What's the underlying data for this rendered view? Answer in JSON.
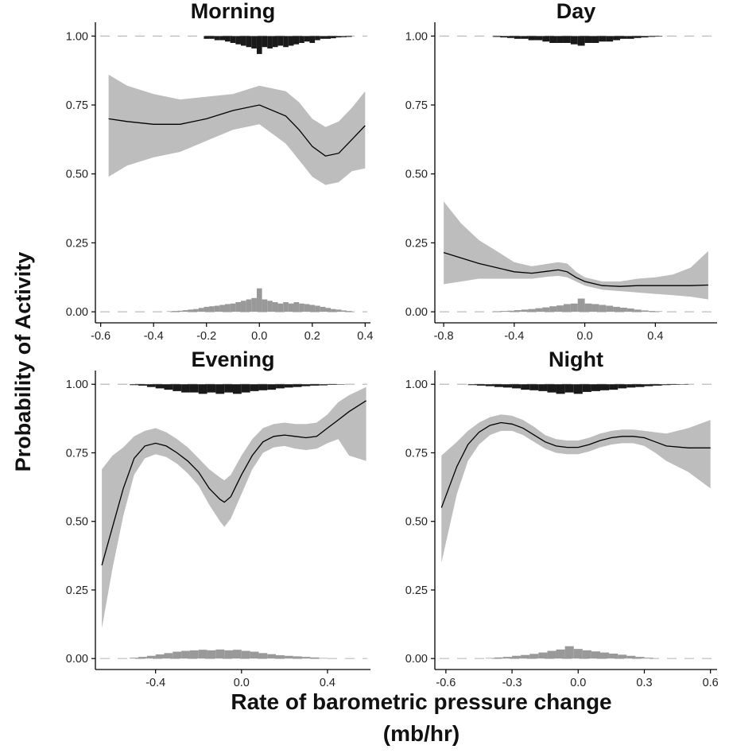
{
  "figure": {
    "ylabel": "Probability of Activity",
    "xlabel_line1": "Rate of barometric pressure change",
    "xlabel_line2": "(mb/hr)"
  },
  "style": {
    "band_color": "#bdbdbd",
    "line_color": "#000000",
    "top_hist_color": "#1a1a1a",
    "bottom_hist_color": "#999999",
    "dash_color": "#bbbbbb",
    "axis_color": "#000000"
  },
  "chart_data": [
    {
      "type": "line",
      "title": "Morning",
      "xlabel": "Rate of barometric pressure change (mb/hr)",
      "ylabel": "Probability of Activity",
      "xlim": [
        -0.62,
        0.42
      ],
      "ylim": [
        -0.04,
        1.05
      ],
      "xticks": [
        -0.6,
        -0.4,
        -0.2,
        0.0,
        0.2,
        0.4
      ],
      "xtick_labels": [
        "-0.6",
        "-0.4",
        "-0.2",
        "0.0",
        "0.2",
        "0.4"
      ],
      "yticks": [
        0.0,
        0.25,
        0.5,
        0.75,
        1.0
      ],
      "ytick_labels": [
        "0.00",
        "0.25",
        "0.50",
        "0.75",
        "1.00"
      ],
      "grid": false,
      "x": [
        -0.57,
        -0.5,
        -0.4,
        -0.3,
        -0.2,
        -0.1,
        0.0,
        0.1,
        0.15,
        0.2,
        0.25,
        0.3,
        0.35,
        0.4
      ],
      "y": [
        0.7,
        0.69,
        0.68,
        0.68,
        0.7,
        0.73,
        0.75,
        0.71,
        0.66,
        0.6,
        0.565,
        0.575,
        0.625,
        0.675
      ],
      "lower": [
        0.49,
        0.53,
        0.56,
        0.58,
        0.62,
        0.66,
        0.68,
        0.61,
        0.55,
        0.49,
        0.46,
        0.47,
        0.51,
        0.52
      ],
      "upper": [
        0.86,
        0.82,
        0.79,
        0.77,
        0.78,
        0.79,
        0.82,
        0.8,
        0.76,
        0.7,
        0.67,
        0.69,
        0.74,
        0.8
      ],
      "rug_top": {
        "x_range": [
          -0.57,
          0.42
        ],
        "bins": [
          -0.2,
          -0.18,
          -0.16,
          -0.14,
          -0.12,
          -0.1,
          -0.08,
          -0.06,
          -0.04,
          -0.02,
          0.0,
          0.02,
          0.04,
          0.06,
          0.08,
          0.1,
          0.12,
          0.14,
          0.16,
          0.18,
          0.2,
          0.22,
          0.24,
          0.26,
          0.28,
          0.3,
          0.32,
          0.34
        ],
        "probs": [
          0.99,
          0.99,
          0.985,
          0.985,
          0.98,
          0.975,
          0.97,
          0.965,
          0.96,
          0.955,
          0.935,
          0.96,
          0.955,
          0.96,
          0.965,
          0.96,
          0.965,
          0.97,
          0.975,
          0.98,
          0.975,
          0.985,
          0.99,
          0.99,
          0.992,
          0.995,
          0.996,
          0.997
        ],
        "bin_width": 0.02
      },
      "rug_bottom": {
        "x_range": [
          -0.57,
          0.42
        ],
        "bins": [
          -0.34,
          -0.32,
          -0.3,
          -0.28,
          -0.26,
          -0.24,
          -0.22,
          -0.2,
          -0.18,
          -0.16,
          -0.14,
          -0.12,
          -0.1,
          -0.08,
          -0.06,
          -0.04,
          -0.02,
          0.0,
          0.02,
          0.04,
          0.06,
          0.08,
          0.1,
          0.12,
          0.14,
          0.16,
          0.18,
          0.2,
          0.22,
          0.24,
          0.26,
          0.28,
          0.3,
          0.32,
          0.34
        ],
        "probs": [
          0.002,
          0.003,
          0.004,
          0.006,
          0.008,
          0.01,
          0.014,
          0.018,
          0.02,
          0.022,
          0.025,
          0.028,
          0.03,
          0.035,
          0.04,
          0.045,
          0.05,
          0.085,
          0.045,
          0.04,
          0.035,
          0.03,
          0.035,
          0.03,
          0.035,
          0.03,
          0.028,
          0.025,
          0.022,
          0.018,
          0.014,
          0.01,
          0.008,
          0.005,
          0.003
        ],
        "bin_width": 0.02
      }
    },
    {
      "type": "line",
      "title": "Day",
      "xlabel": "Rate of barometric pressure change (mb/hr)",
      "ylabel": "Probability of Activity",
      "xlim": [
        -0.85,
        0.75
      ],
      "ylim": [
        -0.04,
        1.05
      ],
      "xticks": [
        -0.8,
        -0.4,
        0.0,
        0.4
      ],
      "xtick_labels": [
        "-0.8",
        "-0.4",
        "0.0",
        "0.4"
      ],
      "yticks": [
        0.0,
        0.25,
        0.5,
        0.75,
        1.0
      ],
      "ytick_labels": [
        "0.00",
        "0.25",
        "0.50",
        "0.75",
        "1.00"
      ],
      "grid": false,
      "x": [
        -0.8,
        -0.7,
        -0.6,
        -0.5,
        -0.4,
        -0.3,
        -0.2,
        -0.15,
        -0.1,
        -0.05,
        0.0,
        0.1,
        0.2,
        0.3,
        0.4,
        0.5,
        0.6,
        0.7
      ],
      "y": [
        0.215,
        0.195,
        0.175,
        0.16,
        0.145,
        0.14,
        0.148,
        0.152,
        0.145,
        0.125,
        0.11,
        0.095,
        0.092,
        0.095,
        0.095,
        0.095,
        0.095,
        0.097
      ],
      "lower": [
        0.1,
        0.11,
        0.12,
        0.12,
        0.12,
        0.12,
        0.128,
        0.13,
        0.125,
        0.11,
        0.095,
        0.08,
        0.075,
        0.07,
        0.065,
        0.06,
        0.055,
        0.045
      ],
      "upper": [
        0.4,
        0.32,
        0.26,
        0.22,
        0.18,
        0.165,
        0.175,
        0.18,
        0.175,
        0.145,
        0.125,
        0.11,
        0.11,
        0.12,
        0.125,
        0.135,
        0.16,
        0.22
      ],
      "rug_top": {
        "x_range": [
          -0.62,
          0.72
        ],
        "bins": [
          -0.5,
          -0.46,
          -0.42,
          -0.38,
          -0.34,
          -0.3,
          -0.26,
          -0.22,
          -0.18,
          -0.14,
          -0.1,
          -0.06,
          -0.02,
          0.02,
          0.06,
          0.1,
          0.14,
          0.18,
          0.22,
          0.26,
          0.3,
          0.34,
          0.38,
          0.42
        ],
        "probs": [
          0.997,
          0.995,
          0.993,
          0.99,
          0.99,
          0.985,
          0.985,
          0.98,
          0.975,
          0.975,
          0.975,
          0.97,
          0.965,
          0.975,
          0.975,
          0.98,
          0.98,
          0.985,
          0.99,
          0.99,
          0.993,
          0.995,
          0.997,
          0.998
        ],
        "bin_width": 0.04
      },
      "rug_bottom": {
        "x_range": [
          -0.62,
          0.72
        ],
        "bins": [
          -0.5,
          -0.46,
          -0.42,
          -0.38,
          -0.34,
          -0.3,
          -0.26,
          -0.22,
          -0.18,
          -0.14,
          -0.1,
          -0.06,
          -0.02,
          0.02,
          0.06,
          0.1,
          0.14,
          0.18,
          0.22,
          0.26,
          0.3,
          0.34,
          0.38,
          0.42
        ],
        "probs": [
          0.002,
          0.003,
          0.004,
          0.006,
          0.008,
          0.01,
          0.013,
          0.016,
          0.02,
          0.023,
          0.028,
          0.03,
          0.048,
          0.03,
          0.028,
          0.025,
          0.022,
          0.018,
          0.015,
          0.012,
          0.008,
          0.005,
          0.003,
          0.002
        ],
        "bin_width": 0.04
      }
    },
    {
      "type": "line",
      "title": "Evening",
      "xlabel": "Rate of barometric pressure change (mb/hr)",
      "ylabel": "Probability of Activity",
      "xlim": [
        -0.68,
        0.6
      ],
      "ylim": [
        -0.04,
        1.05
      ],
      "xticks": [
        -0.4,
        0.0,
        0.4
      ],
      "xtick_labels": [
        "-0.4",
        "0.0",
        "0.4"
      ],
      "yticks": [
        0.0,
        0.25,
        0.5,
        0.75,
        1.0
      ],
      "ytick_labels": [
        "0.00",
        "0.25",
        "0.50",
        "0.75",
        "1.00"
      ],
      "grid": false,
      "x": [
        -0.65,
        -0.6,
        -0.55,
        -0.5,
        -0.45,
        -0.4,
        -0.35,
        -0.3,
        -0.25,
        -0.2,
        -0.15,
        -0.1,
        -0.08,
        -0.05,
        0.0,
        0.05,
        0.1,
        0.15,
        0.2,
        0.25,
        0.3,
        0.35,
        0.4,
        0.45,
        0.5,
        0.58
      ],
      "y": [
        0.34,
        0.48,
        0.62,
        0.73,
        0.775,
        0.785,
        0.775,
        0.75,
        0.72,
        0.68,
        0.62,
        0.58,
        0.57,
        0.59,
        0.67,
        0.74,
        0.79,
        0.81,
        0.815,
        0.81,
        0.805,
        0.81,
        0.84,
        0.87,
        0.9,
        0.94
      ],
      "lower": [
        0.11,
        0.33,
        0.52,
        0.67,
        0.73,
        0.745,
        0.735,
        0.71,
        0.675,
        0.63,
        0.56,
        0.5,
        0.48,
        0.51,
        0.6,
        0.69,
        0.75,
        0.77,
        0.775,
        0.765,
        0.76,
        0.765,
        0.785,
        0.8,
        0.74,
        0.72
      ],
      "upper": [
        0.69,
        0.74,
        0.77,
        0.81,
        0.83,
        0.84,
        0.825,
        0.8,
        0.77,
        0.73,
        0.69,
        0.66,
        0.65,
        0.67,
        0.74,
        0.8,
        0.84,
        0.855,
        0.86,
        0.855,
        0.855,
        0.86,
        0.89,
        0.935,
        0.96,
        0.99
      ],
      "rug_top": {
        "x_range": [
          -0.52,
          0.58
        ],
        "bins": [
          -0.5,
          -0.46,
          -0.42,
          -0.38,
          -0.34,
          -0.3,
          -0.26,
          -0.22,
          -0.18,
          -0.14,
          -0.1,
          -0.06,
          -0.02,
          0.02,
          0.06,
          0.1,
          0.14,
          0.18,
          0.22,
          0.26,
          0.3,
          0.34,
          0.38,
          0.42,
          0.46
        ],
        "probs": [
          0.997,
          0.995,
          0.99,
          0.985,
          0.98,
          0.975,
          0.97,
          0.97,
          0.965,
          0.97,
          0.965,
          0.97,
          0.965,
          0.97,
          0.975,
          0.978,
          0.98,
          0.985,
          0.988,
          0.99,
          0.993,
          0.995,
          0.996,
          0.998,
          0.999
        ],
        "bin_width": 0.04
      },
      "rug_bottom": {
        "x_range": [
          -0.52,
          0.58
        ],
        "bins": [
          -0.5,
          -0.46,
          -0.42,
          -0.38,
          -0.34,
          -0.3,
          -0.26,
          -0.22,
          -0.18,
          -0.14,
          -0.1,
          -0.06,
          -0.02,
          0.02,
          0.06,
          0.1,
          0.14,
          0.18,
          0.22,
          0.26,
          0.3,
          0.34,
          0.38
        ],
        "probs": [
          0.003,
          0.006,
          0.01,
          0.015,
          0.02,
          0.025,
          0.028,
          0.03,
          0.032,
          0.03,
          0.033,
          0.03,
          0.032,
          0.028,
          0.025,
          0.02,
          0.016,
          0.012,
          0.01,
          0.008,
          0.006,
          0.004,
          0.002
        ],
        "bin_width": 0.04
      }
    },
    {
      "type": "line",
      "title": "Night",
      "xlabel": "Rate of barometric pressure change (mb/hr)",
      "ylabel": "Probability of Activity",
      "xlim": [
        -0.65,
        0.63
      ],
      "ylim": [
        -0.04,
        1.05
      ],
      "xticks": [
        -0.6,
        -0.3,
        0.0,
        0.3,
        0.6
      ],
      "xtick_labels": [
        "-0.6",
        "-0.3",
        "0.0",
        "0.3",
        "0.6"
      ],
      "yticks": [
        0.0,
        0.25,
        0.5,
        0.75,
        1.0
      ],
      "ytick_labels": [
        "0.00",
        "0.25",
        "0.50",
        "0.75",
        "1.00"
      ],
      "grid": false,
      "x": [
        -0.62,
        -0.55,
        -0.5,
        -0.45,
        -0.4,
        -0.35,
        -0.3,
        -0.25,
        -0.2,
        -0.15,
        -0.1,
        -0.05,
        0.0,
        0.05,
        0.1,
        0.15,
        0.2,
        0.25,
        0.3,
        0.35,
        0.4,
        0.5,
        0.6
      ],
      "y": [
        0.55,
        0.7,
        0.78,
        0.825,
        0.85,
        0.86,
        0.855,
        0.84,
        0.815,
        0.79,
        0.775,
        0.77,
        0.77,
        0.78,
        0.795,
        0.805,
        0.81,
        0.81,
        0.805,
        0.79,
        0.775,
        0.768,
        0.768
      ],
      "lower": [
        0.35,
        0.6,
        0.72,
        0.78,
        0.815,
        0.83,
        0.83,
        0.815,
        0.79,
        0.765,
        0.75,
        0.745,
        0.745,
        0.755,
        0.77,
        0.78,
        0.785,
        0.785,
        0.775,
        0.75,
        0.72,
        0.68,
        0.62
      ],
      "upper": [
        0.74,
        0.79,
        0.83,
        0.86,
        0.88,
        0.89,
        0.885,
        0.87,
        0.845,
        0.815,
        0.8,
        0.795,
        0.795,
        0.805,
        0.82,
        0.83,
        0.835,
        0.835,
        0.83,
        0.825,
        0.82,
        0.84,
        0.87
      ],
      "rug_top": {
        "x_range": [
          -0.48,
          0.62
        ],
        "bins": [
          -0.48,
          -0.44,
          -0.4,
          -0.36,
          -0.32,
          -0.28,
          -0.24,
          -0.2,
          -0.16,
          -0.12,
          -0.08,
          -0.04,
          0.0,
          0.04,
          0.08,
          0.12,
          0.16,
          0.2,
          0.24,
          0.28,
          0.32,
          0.36,
          0.4,
          0.44,
          0.48
        ],
        "probs": [
          0.997,
          0.995,
          0.993,
          0.99,
          0.988,
          0.985,
          0.98,
          0.978,
          0.975,
          0.97,
          0.965,
          0.97,
          0.965,
          0.972,
          0.975,
          0.978,
          0.98,
          0.985,
          0.988,
          0.99,
          0.993,
          0.995,
          0.997,
          0.998,
          0.999
        ],
        "bin_width": 0.04
      },
      "rug_bottom": {
        "x_range": [
          -0.48,
          0.62
        ],
        "bins": [
          -0.4,
          -0.36,
          -0.32,
          -0.28,
          -0.24,
          -0.2,
          -0.16,
          -0.12,
          -0.08,
          -0.04,
          0.0,
          0.04,
          0.08,
          0.12,
          0.16,
          0.2,
          0.24,
          0.28,
          0.32
        ],
        "probs": [
          0.002,
          0.004,
          0.006,
          0.01,
          0.013,
          0.017,
          0.022,
          0.028,
          0.033,
          0.045,
          0.035,
          0.03,
          0.026,
          0.022,
          0.018,
          0.014,
          0.01,
          0.006,
          0.003
        ],
        "bin_width": 0.04
      }
    }
  ]
}
